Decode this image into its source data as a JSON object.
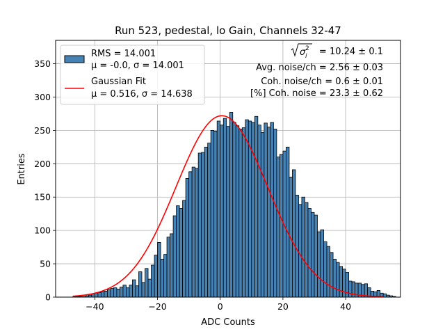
{
  "chart_data": {
    "type": "bar",
    "title": "Run 523, pedestal, lo Gain, Channels 32-47",
    "xlabel": "ADC Counts",
    "ylabel": "Entries",
    "xlim": [
      -52.5,
      57.5
    ],
    "ylim": [
      0,
      385
    ],
    "xticks": [
      -40,
      -20,
      0,
      20,
      40
    ],
    "xtick_labels": [
      "−40",
      "−20",
      "0",
      "20",
      "40"
    ],
    "yticks": [
      0,
      50,
      100,
      150,
      200,
      250,
      300,
      350
    ],
    "ytick_labels": [
      "0",
      "50",
      "100",
      "150",
      "200",
      "250",
      "300",
      "350"
    ],
    "grid": true,
    "bin_width": 1,
    "bin_start": -47,
    "bin_values": [
      1,
      1,
      1,
      1,
      2,
      3,
      5,
      6,
      7,
      8,
      9,
      11,
      13,
      14,
      12,
      15,
      18,
      14,
      18,
      26,
      17,
      38,
      22,
      43,
      27,
      48,
      63,
      82,
      57,
      64,
      90,
      95,
      122,
      137,
      133,
      145,
      178,
      188,
      195,
      193,
      216,
      217,
      225,
      231,
      250,
      249,
      264,
      258,
      268,
      256,
      277,
      262,
      257,
      252,
      254,
      266,
      264,
      262,
      271,
      258,
      247,
      261,
      255,
      262,
      252,
      210,
      214,
      219,
      225,
      180,
      191,
      153,
      139,
      150,
      142,
      133,
      127,
      123,
      98,
      101,
      83,
      76,
      67,
      57,
      52,
      46,
      42,
      37,
      24,
      23,
      21,
      21,
      19,
      20,
      14,
      9,
      8,
      10,
      6,
      5,
      3,
      2,
      1
    ],
    "bar_color": "#4682b4",
    "fit_color": "#ff0000",
    "fit": {
      "amplitude": 272,
      "mu": 0.516,
      "sigma": 14.638,
      "x_range": [
        -47,
        52
      ]
    },
    "legend": {
      "position": "upper-left",
      "entries": [
        {
          "kind": "patch",
          "line1": "RMS = 14.001",
          "line2": "μ = -0.0, σ = 14.001"
        },
        {
          "kind": "line",
          "line1": "Gaussian Fit",
          "line2": "μ = 0.516, σ = 14.638"
        }
      ]
    },
    "annotations": {
      "sqrt_value": " = 10.24 ± 0.1",
      "avg_noise": "Avg. noise/ch = 2.56 ± 0.03",
      "coh_noise": "Coh. noise/ch = 0.6 ± 0.01",
      "coh_percent": "[%] Coh. noise = 23.3 ± 0.62"
    }
  }
}
